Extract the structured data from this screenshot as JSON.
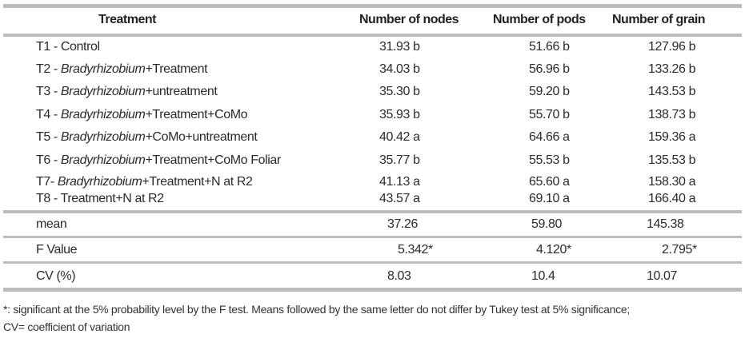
{
  "table": {
    "headers": {
      "treatment": "Treatment",
      "nodes": "Number of nodes",
      "pods": "Number of pods",
      "grain": "Number of grain"
    },
    "rows": [
      {
        "prefix": "T1 - Control",
        "italic": "",
        "suffix": "",
        "nodes": "31.93 b",
        "pods": "51.66 b",
        "grain": "127.96 b"
      },
      {
        "prefix": "T2 - ",
        "italic": "Bradyrhizobium",
        "suffix": "+Treatment",
        "nodes": "34.03 b",
        "pods": "56.96 b",
        "grain": "133.26 b"
      },
      {
        "prefix": "T3 - ",
        "italic": "Bradyrhizobium",
        "suffix": "+untreatment",
        "nodes": "35.30 b",
        "pods": "59.20 b",
        "grain": "143.53 b"
      },
      {
        "prefix": "T4 - ",
        "italic": "Bradyrhizobium",
        "suffix": "+Treatment+CoMo",
        "nodes": "35.93 b",
        "pods": "55.70 b",
        "grain": "138.73 b"
      },
      {
        "prefix": "T5 - ",
        "italic": "Bradyrhizobium",
        "suffix": "+CoMo+untreatment",
        "nodes": "40.42 a",
        "pods": "64.66 a",
        "grain": "159.36 a"
      },
      {
        "prefix": "T6 - ",
        "italic": "Bradyrhizobium",
        "suffix": "+Treatment+CoMo Foliar",
        "nodes": "35.77 b",
        "pods": "55.53 b",
        "grain": "135.53 b"
      },
      {
        "prefix": "T7- ",
        "italic": "Bradyrhizobium",
        "suffix": "+Treatment+N at R2",
        "nodes": "41.13 a",
        "pods": "65.60 a",
        "grain": "158.30 a"
      },
      {
        "prefix": "T8 - Treatment+N at R2",
        "italic": "",
        "suffix": "",
        "nodes": "43.57 a",
        "pods": "69.10 a",
        "grain": "166.40 a"
      }
    ],
    "stats": [
      {
        "label": "mean",
        "nodes": "37.26",
        "pods": "59.80",
        "grain": "145.38"
      },
      {
        "label": "F Value",
        "nodes": "5.342*",
        "pods": "4.120*",
        "grain": "2.795*"
      },
      {
        "label": "CV (%)",
        "nodes": "8.03",
        "pods": "10.4",
        "grain": "10.07"
      }
    ]
  },
  "footnote": {
    "line1": "*: significant at the 5% probability level by the F test. Means followed by the same letter do not differ by Tukey test at 5% significance;",
    "line2": "CV= coefficient of variation"
  },
  "colors": {
    "rule": "#bdbdbd",
    "text": "#2b2b2b"
  }
}
